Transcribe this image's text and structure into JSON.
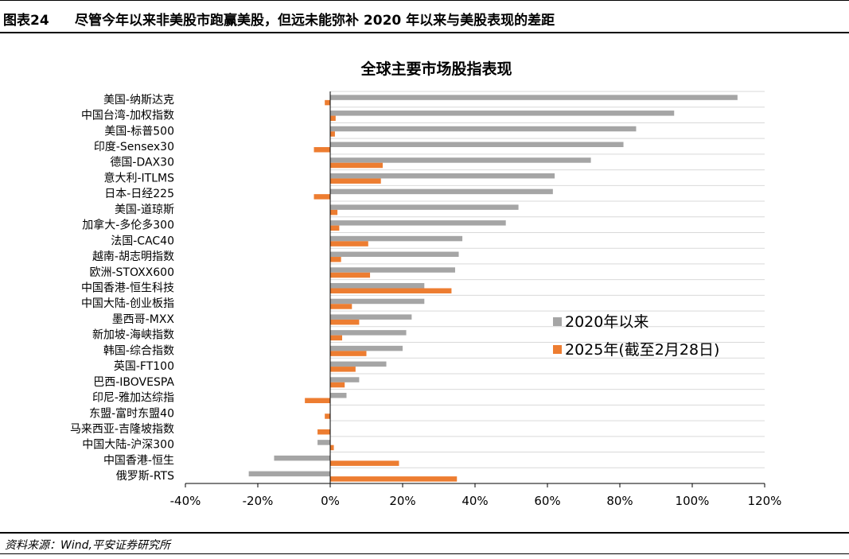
{
  "figure": {
    "number": "图表24",
    "caption": "尽管今年以来非美股市跑赢美股，但远未能弥补 2020 年以来与美股表现的差距"
  },
  "source": "资料来源：Wind,平安证券研究所",
  "colors": {
    "series_2020": "#a5a5a5",
    "series_2025": "#ed7d31",
    "grid": "#d9d9d9"
  },
  "chart_data": {
    "type": "bar",
    "orientation": "horizontal",
    "title": "全球主要市场股指表现",
    "categories": [
      "美国-纳斯达克",
      "中国台湾-加权指数",
      "美国-标普500",
      "印度-Sensex30",
      "德国-DAX30",
      "意大利-ITLMS",
      "日本-日经225",
      "美国-道琼斯",
      "加拿大-多伦多300",
      "法国-CAC40",
      "越南-胡志明指数",
      "欧洲-STOXX600",
      "中国香港-恒生科技",
      "中国大陆-创业板指",
      "墨西哥-MXX",
      "新加坡-海峡指数",
      "韩国-综合指数",
      "英国-FT100",
      "巴西-IBOVESPA",
      "印尼-雅加达综指",
      "东盟-富时东盟40",
      "马来西亚-吉隆坡指数",
      "中国大陆-沪深300",
      "中国香港-恒生",
      "俄罗斯-RTS"
    ],
    "series": [
      {
        "name": "2020年以来",
        "values": [
          112.5,
          95,
          84.5,
          81,
          72,
          62,
          61.5,
          52,
          48.5,
          36.5,
          35.5,
          34.5,
          26,
          26,
          22.5,
          21,
          20,
          15.5,
          8,
          4.5,
          0,
          0,
          -3.5,
          -15.5,
          -22.5
        ]
      },
      {
        "name": "2025年(截至2月28日)",
        "values": [
          -1.5,
          1.5,
          1.3,
          -4.5,
          14.5,
          14,
          -4.5,
          2,
          2.5,
          10.5,
          3,
          11,
          33.5,
          6,
          8,
          3.3,
          10,
          7,
          4,
          -7,
          -1.5,
          -3.5,
          1,
          19,
          35
        ]
      }
    ],
    "xlim": [
      -40,
      120
    ],
    "xticks": [
      -40,
      -20,
      0,
      20,
      40,
      60,
      80,
      100,
      120
    ],
    "tick_format": "percent",
    "legend_position": "center-right",
    "grid": true
  }
}
